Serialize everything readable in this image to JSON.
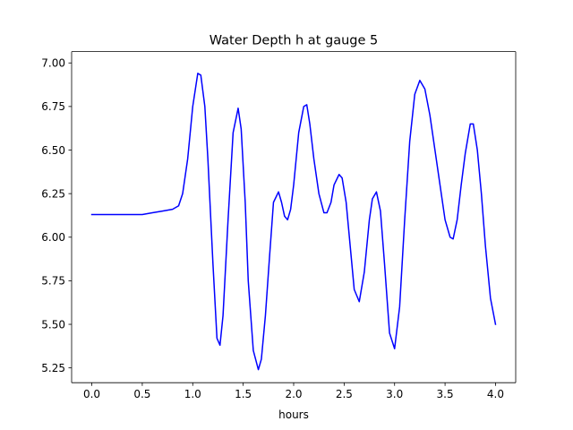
{
  "chart_data": {
    "type": "line",
    "title": "Water Depth h at gauge 5",
    "xlabel": "hours",
    "ylabel": "",
    "xlim": [
      -0.2,
      4.2
    ],
    "ylim": [
      5.165,
      7.065
    ],
    "xticks": [
      0.0,
      0.5,
      1.0,
      1.5,
      2.0,
      2.5,
      3.0,
      3.5,
      4.0
    ],
    "xtick_labels": [
      "0.0",
      "0.5",
      "1.0",
      "1.5",
      "2.0",
      "2.5",
      "3.0",
      "3.5",
      "4.0"
    ],
    "yticks": [
      5.25,
      5.5,
      5.75,
      6.0,
      6.25,
      6.5,
      6.75,
      7.0
    ],
    "ytick_labels": [
      "5.25",
      "5.50",
      "5.75",
      "6.00",
      "6.25",
      "6.50",
      "6.75",
      "7.00"
    ],
    "grid": false,
    "legend": "none",
    "series": [
      {
        "color": "#0000ff",
        "x": [
          0.0,
          0.25,
          0.5,
          0.6,
          0.7,
          0.8,
          0.86,
          0.9,
          0.95,
          1.0,
          1.05,
          1.08,
          1.12,
          1.15,
          1.2,
          1.24,
          1.27,
          1.3,
          1.35,
          1.4,
          1.45,
          1.48,
          1.52,
          1.55,
          1.6,
          1.65,
          1.68,
          1.72,
          1.76,
          1.8,
          1.85,
          1.88,
          1.91,
          1.94,
          1.97,
          2.0,
          2.05,
          2.1,
          2.13,
          2.16,
          2.2,
          2.25,
          2.3,
          2.33,
          2.37,
          2.4,
          2.45,
          2.48,
          2.52,
          2.56,
          2.6,
          2.65,
          2.7,
          2.75,
          2.78,
          2.82,
          2.86,
          2.9,
          2.95,
          3.0,
          3.05,
          3.1,
          3.15,
          3.2,
          3.25,
          3.3,
          3.35,
          3.4,
          3.45,
          3.5,
          3.55,
          3.58,
          3.62,
          3.66,
          3.7,
          3.75,
          3.78,
          3.82,
          3.86,
          3.9,
          3.95,
          4.0
        ],
        "y": [
          6.13,
          6.13,
          6.13,
          6.14,
          6.15,
          6.16,
          6.18,
          6.25,
          6.45,
          6.75,
          6.94,
          6.93,
          6.75,
          6.45,
          5.85,
          5.42,
          5.38,
          5.55,
          6.1,
          6.6,
          6.74,
          6.62,
          6.2,
          5.75,
          5.35,
          5.24,
          5.3,
          5.55,
          5.88,
          6.2,
          6.26,
          6.2,
          6.12,
          6.1,
          6.16,
          6.3,
          6.6,
          6.75,
          6.76,
          6.65,
          6.45,
          6.25,
          6.14,
          6.14,
          6.2,
          6.3,
          6.36,
          6.34,
          6.2,
          5.95,
          5.7,
          5.63,
          5.8,
          6.1,
          6.22,
          6.26,
          6.15,
          5.85,
          5.45,
          5.36,
          5.6,
          6.1,
          6.55,
          6.82,
          6.9,
          6.85,
          6.7,
          6.5,
          6.3,
          6.1,
          6.0,
          5.99,
          6.1,
          6.3,
          6.48,
          6.65,
          6.65,
          6.5,
          6.25,
          5.95,
          5.65,
          5.5
        ]
      }
    ]
  }
}
